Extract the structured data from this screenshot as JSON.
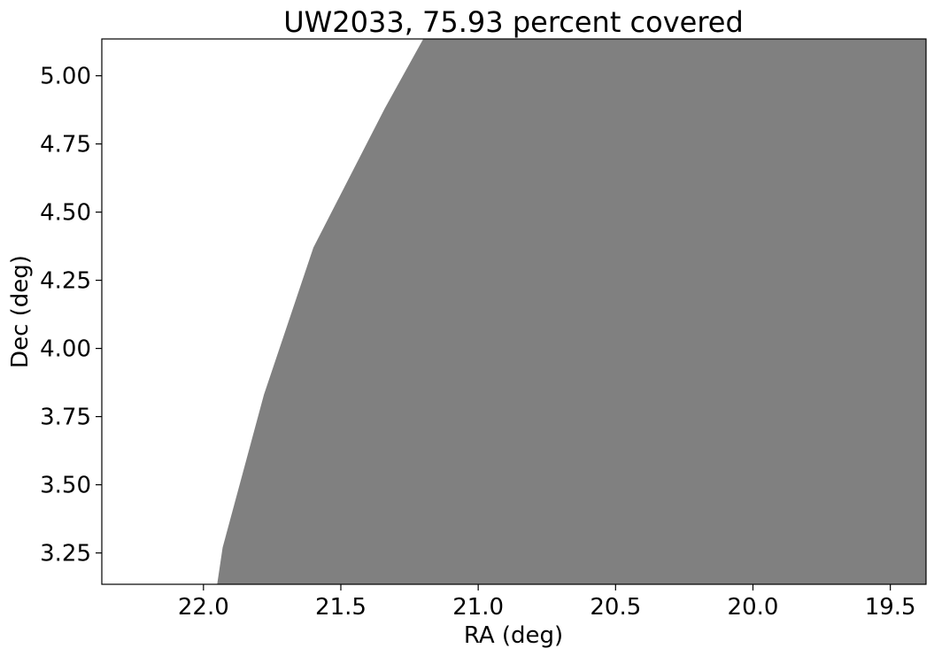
{
  "chart_data": {
    "type": "area",
    "title": "UW2033, 75.93 percent covered",
    "xlabel": "RA (deg)",
    "ylabel": "Dec (deg)",
    "xlim": [
      22.37,
      19.37
    ],
    "ylim": [
      3.135,
      5.135
    ],
    "x_inverted": true,
    "grid": false,
    "xticks": [
      22.0,
      21.5,
      21.0,
      20.5,
      20.0,
      19.5
    ],
    "xtick_labels": [
      "22.0",
      "21.5",
      "21.0",
      "20.5",
      "20.0",
      "19.5"
    ],
    "yticks": [
      3.25,
      3.5,
      3.75,
      4.0,
      4.25,
      4.5,
      4.75,
      5.0
    ],
    "ytick_labels": [
      "3.25",
      "3.50",
      "3.75",
      "4.00",
      "4.25",
      "4.50",
      "4.75",
      "5.00"
    ],
    "covered_color": "#808080",
    "covered_boundary": [
      {
        "ra": 21.95,
        "dec": 3.135
      },
      {
        "ra": 21.93,
        "dec": 3.27
      },
      {
        "ra": 21.78,
        "dec": 3.83
      },
      {
        "ra": 21.6,
        "dec": 4.37
      },
      {
        "ra": 21.34,
        "dec": 4.88
      },
      {
        "ra": 21.2,
        "dec": 5.135
      }
    ],
    "covered_percent": 75.93
  }
}
